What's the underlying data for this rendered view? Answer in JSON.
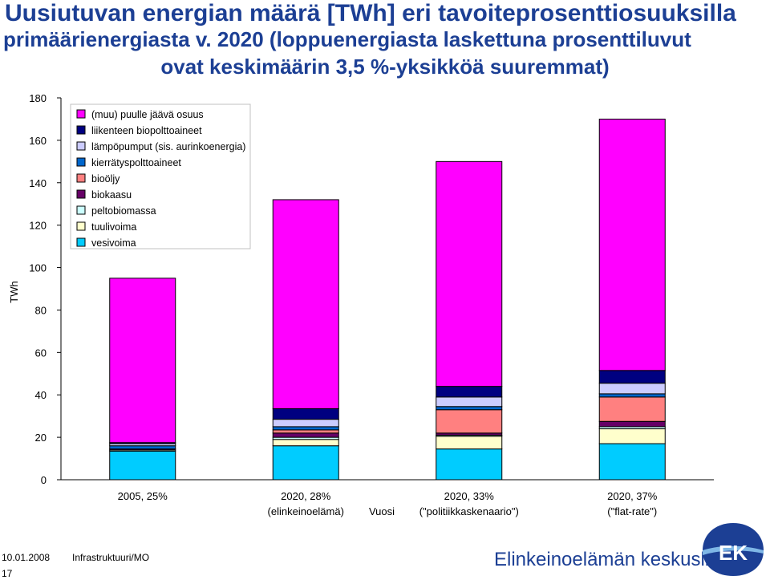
{
  "title": {
    "line1": "Uusiutuvan energian määrä [TWh] eri tavoiteprosenttiosuuksilla",
    "line2": "primäärienergiasta v. 2020 (loppuenergiasta laskettuna prosenttiluvut",
    "line3": "ovat keskimäärin 3,5 %-yksikköä suuremmat)"
  },
  "footer": {
    "date": "10.01.2008",
    "unit": "Infrastruktuuri/MO",
    "page": "17",
    "brand": "Elinkeinoelämän keskusliitto",
    "logo_text": "EK"
  },
  "chart_data": {
    "type": "bar",
    "stacked": true,
    "ylabel": "TWh",
    "xlabel": "Vuosi",
    "ylim": [
      0,
      180
    ],
    "yticks": [
      0,
      20,
      40,
      60,
      80,
      100,
      120,
      140,
      160,
      180
    ],
    "categories": [
      "2005, 25%",
      "2020, 28%\n(elinkeinoelämä)",
      "2020, 33%\n(\"politiikkaskenaario\")",
      "2020, 37%\n(\"flat-rate\")"
    ],
    "legend_position": "top-left",
    "series": [
      {
        "name": "vesivoima",
        "color": "#00ccff",
        "values": [
          13.5,
          16,
          14.5,
          17
        ]
      },
      {
        "name": "tuulivoima",
        "color": "#ffffcc",
        "values": [
          0.5,
          3,
          6,
          7
        ]
      },
      {
        "name": "peltobiomassa",
        "color": "#ccffff",
        "values": [
          0,
          1,
          0.5,
          1
        ]
      },
      {
        "name": "biokaasu",
        "color": "#660066",
        "values": [
          0.5,
          2,
          1,
          2.5
        ]
      },
      {
        "name": "bioöljy",
        "color": "#ff8080",
        "values": [
          0,
          1.5,
          11,
          11.5
        ]
      },
      {
        "name": "kierrätyspolttoaineet",
        "color": "#0066cc",
        "values": [
          1.5,
          1.5,
          1.5,
          1.5
        ]
      },
      {
        "name": "lämpöpumput (sis. aurinkoenergia)",
        "color": "#ccccff",
        "values": [
          1,
          3.5,
          4.5,
          5
        ]
      },
      {
        "name": "liikenteen biopolttoaineet",
        "color": "#000080",
        "values": [
          0.5,
          5,
          5,
          6
        ]
      },
      {
        "name": "(muu) puulle jäävä osuus",
        "color": "#ff00ff",
        "values": [
          77.5,
          98.5,
          106,
          118.5
        ]
      }
    ]
  }
}
